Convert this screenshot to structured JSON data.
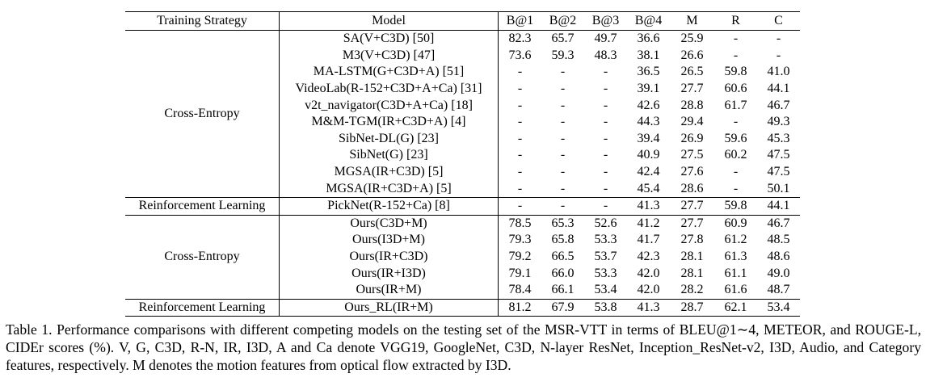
{
  "table": {
    "columns": [
      "Training Strategy",
      "Model",
      "B@1",
      "B@2",
      "B@3",
      "B@4",
      "M",
      "R",
      "C"
    ],
    "groups": [
      {
        "strategy": "Cross-Entropy",
        "rows": [
          [
            "SA(V+C3D) [50]",
            "82.3",
            "65.7",
            "49.7",
            "36.6",
            "25.9",
            "-",
            "-"
          ],
          [
            "M3(V+C3D) [47]",
            "73.6",
            "59.3",
            "48.3",
            "38.1",
            "26.6",
            "-",
            "-"
          ],
          [
            "MA-LSTM(G+C3D+A) [51]",
            "-",
            "-",
            "-",
            "36.5",
            "26.5",
            "59.8",
            "41.0"
          ],
          [
            "VideoLab(R-152+C3D+A+Ca) [31]",
            "-",
            "-",
            "-",
            "39.1",
            "27.7",
            "60.6",
            "44.1"
          ],
          [
            "v2t_navigator(C3D+A+Ca) [18]",
            "-",
            "-",
            "-",
            "42.6",
            "28.8",
            "61.7",
            "46.7"
          ],
          [
            "M&M-TGM(IR+C3D+A) [4]",
            "-",
            "-",
            "-",
            "44.3",
            "29.4",
            "-",
            "49.3"
          ],
          [
            "SibNet-DL(G) [23]",
            "-",
            "-",
            "-",
            "39.4",
            "26.9",
            "59.6",
            "45.3"
          ],
          [
            "SibNet(G) [23]",
            "-",
            "-",
            "-",
            "40.9",
            "27.5",
            "60.2",
            "47.5"
          ],
          [
            "MGSA(IR+C3D) [5]",
            "-",
            "-",
            "-",
            "42.4",
            "27.6",
            "-",
            "47.5"
          ],
          [
            "MGSA(IR+C3D+A) [5]",
            "-",
            "-",
            "-",
            "45.4",
            "28.6",
            "-",
            "50.1"
          ]
        ]
      },
      {
        "strategy": "Reinforcement Learning",
        "rows": [
          [
            "PickNet(R-152+Ca) [8]",
            "-",
            "-",
            "-",
            "41.3",
            "27.7",
            "59.8",
            "44.1"
          ]
        ]
      },
      {
        "strategy": "Cross-Entropy",
        "rows": [
          [
            "Ours(C3D+M)",
            "78.5",
            "65.3",
            "52.6",
            "41.2",
            "27.7",
            "60.9",
            "46.7"
          ],
          [
            "Ours(I3D+M)",
            "79.3",
            "65.8",
            "53.3",
            "41.7",
            "27.8",
            "61.2",
            "48.5"
          ],
          [
            "Ours(IR+C3D)",
            "79.2",
            "66.5",
            "53.7",
            "42.3",
            "28.1",
            "61.3",
            "48.6"
          ],
          [
            "Ours(IR+I3D)",
            "79.1",
            "66.0",
            "53.3",
            "42.0",
            "28.1",
            "61.1",
            "49.0"
          ],
          [
            "Ours(IR+M)",
            "78.4",
            "66.1",
            "53.4",
            "42.0",
            "28.2",
            "61.6",
            "48.7"
          ]
        ]
      },
      {
        "strategy": "Reinforcement Learning",
        "rows": [
          [
            "Ours_RL(IR+M)",
            "81.2",
            "67.9",
            "53.8",
            "41.3",
            "28.7",
            "62.1",
            "53.4"
          ]
        ]
      }
    ]
  },
  "caption": "Table 1. Performance comparisons with different competing models on the testing set of the MSR-VTT in terms of BLEU@1∼4, METEOR, and ROUGE-L, CIDEr scores (%). V, G, C3D, R-N, IR, I3D, A and Ca denote VGG19, GoogleNet, C3D, N-layer ResNet, Inception_ResNet-v2, I3D, Audio, and Category features, respectively. M denotes the motion features from optical flow extracted by I3D."
}
